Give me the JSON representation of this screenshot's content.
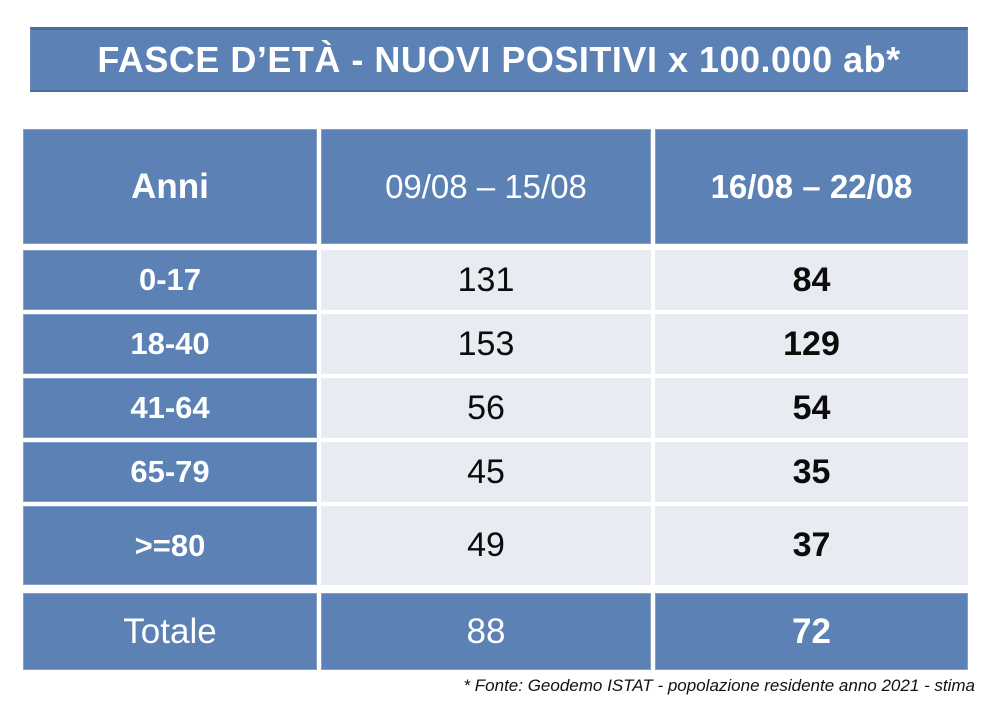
{
  "slide": {
    "title": "FASCE D’ETÀ - NUOVI POSITIVI x 100.000 ab*",
    "footnote": "* Fonte: Geodemo ISTAT - popolazione residente anno 2021 - stima"
  },
  "table": {
    "columns": {
      "age": "Anni",
      "week1": "09/08 – 15/08",
      "week2": "16/08 – 22/08"
    },
    "rows": [
      {
        "label": "0-17",
        "week1": "131",
        "week2": "84"
      },
      {
        "label": "18-40",
        "week1": "153",
        "week2": "129"
      },
      {
        "label": "41-64",
        "week1": "56",
        "week2": "54"
      },
      {
        "label": "65-79",
        "week1": "45",
        "week2": "35"
      },
      {
        "label": ">=80",
        "week1": "49",
        "week2": "37"
      }
    ],
    "total": {
      "label": "Totale",
      "week1": "88",
      "week2": "72"
    }
  },
  "colors": {
    "accent_blue": "#5b81b5",
    "accent_blue_dark_edge": "#4a6d9e",
    "light_cell": "#e9ebf3",
    "header_text": "#ffffff",
    "body_text": "#0b0b0b"
  },
  "chart_data": {
    "type": "table",
    "title": "FASCE D’ETÀ - NUOVI POSITIVI x 100.000 ab*",
    "categories": [
      "0-17",
      "18-40",
      "41-64",
      "65-79",
      ">=80",
      "Totale"
    ],
    "series": [
      {
        "name": "09/08 – 15/08",
        "values": [
          131,
          153,
          56,
          45,
          49,
          88
        ]
      },
      {
        "name": "16/08 – 22/08",
        "values": [
          84,
          129,
          54,
          35,
          37,
          72
        ]
      }
    ],
    "footnote": "* Fonte: Geodemo ISTAT - popolazione residente anno 2021 - stima"
  }
}
